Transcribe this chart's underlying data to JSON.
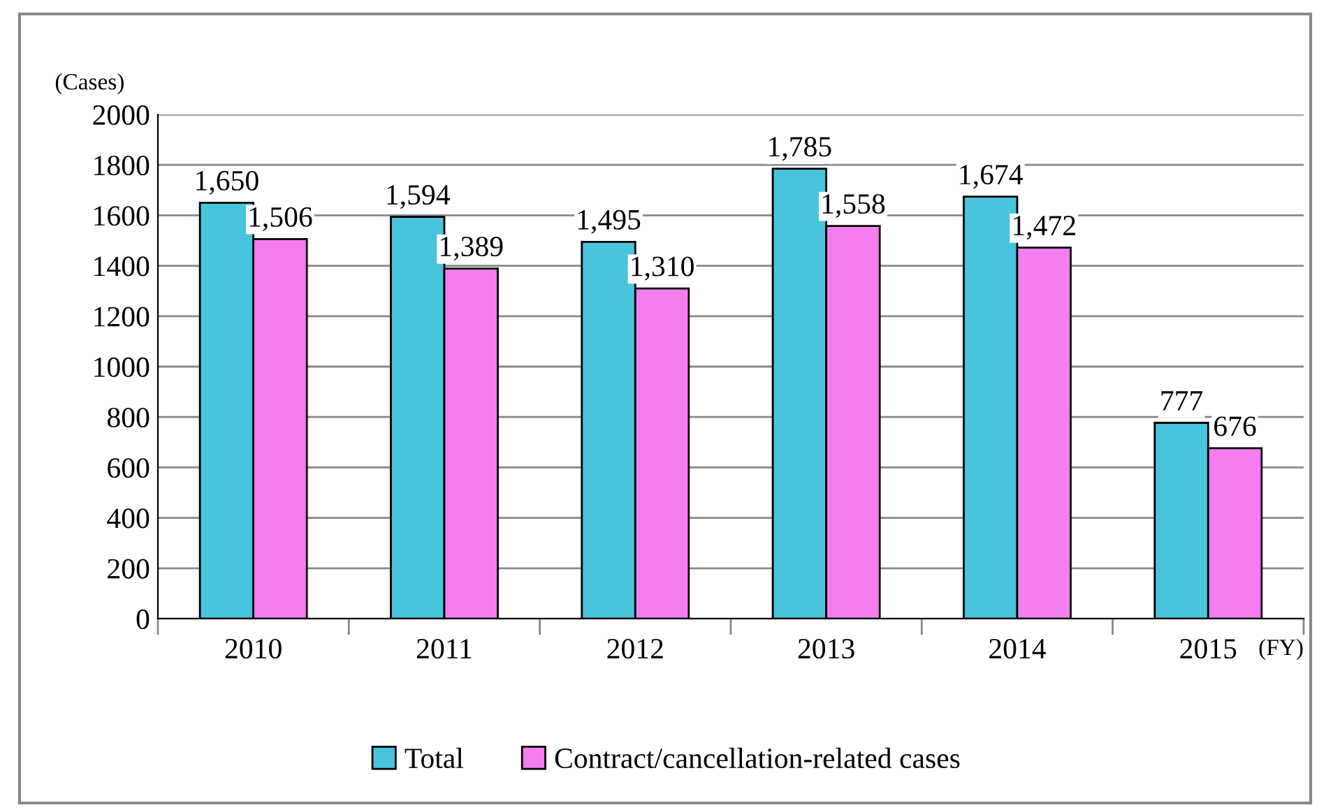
{
  "chart_data": {
    "type": "bar",
    "ylabel": "(Cases)",
    "xlabel": "(FY)",
    "categories": [
      "2010",
      "2011",
      "2012",
      "2013",
      "2014",
      "2015"
    ],
    "series": [
      {
        "name": "Total",
        "color": "#48c4dc",
        "values": [
          1650,
          1594,
          1495,
          1785,
          1674,
          777
        ],
        "value_labels": [
          "1,650",
          "1,594",
          "1,495",
          "1,785",
          "1,674",
          "777"
        ]
      },
      {
        "name": "Contract/cancellation-related cases",
        "color": "#f47ef0",
        "values": [
          1506,
          1389,
          1310,
          1558,
          1472,
          676
        ],
        "value_labels": [
          "1,506",
          "1,389",
          "1,310",
          "1,558",
          "1,472",
          "676"
        ]
      }
    ],
    "ylim": [
      0,
      2000
    ],
    "yticks": [
      0,
      200,
      400,
      600,
      800,
      1000,
      1200,
      1400,
      1600,
      1800,
      2000
    ],
    "grid": "y",
    "legend": "bottom"
  }
}
